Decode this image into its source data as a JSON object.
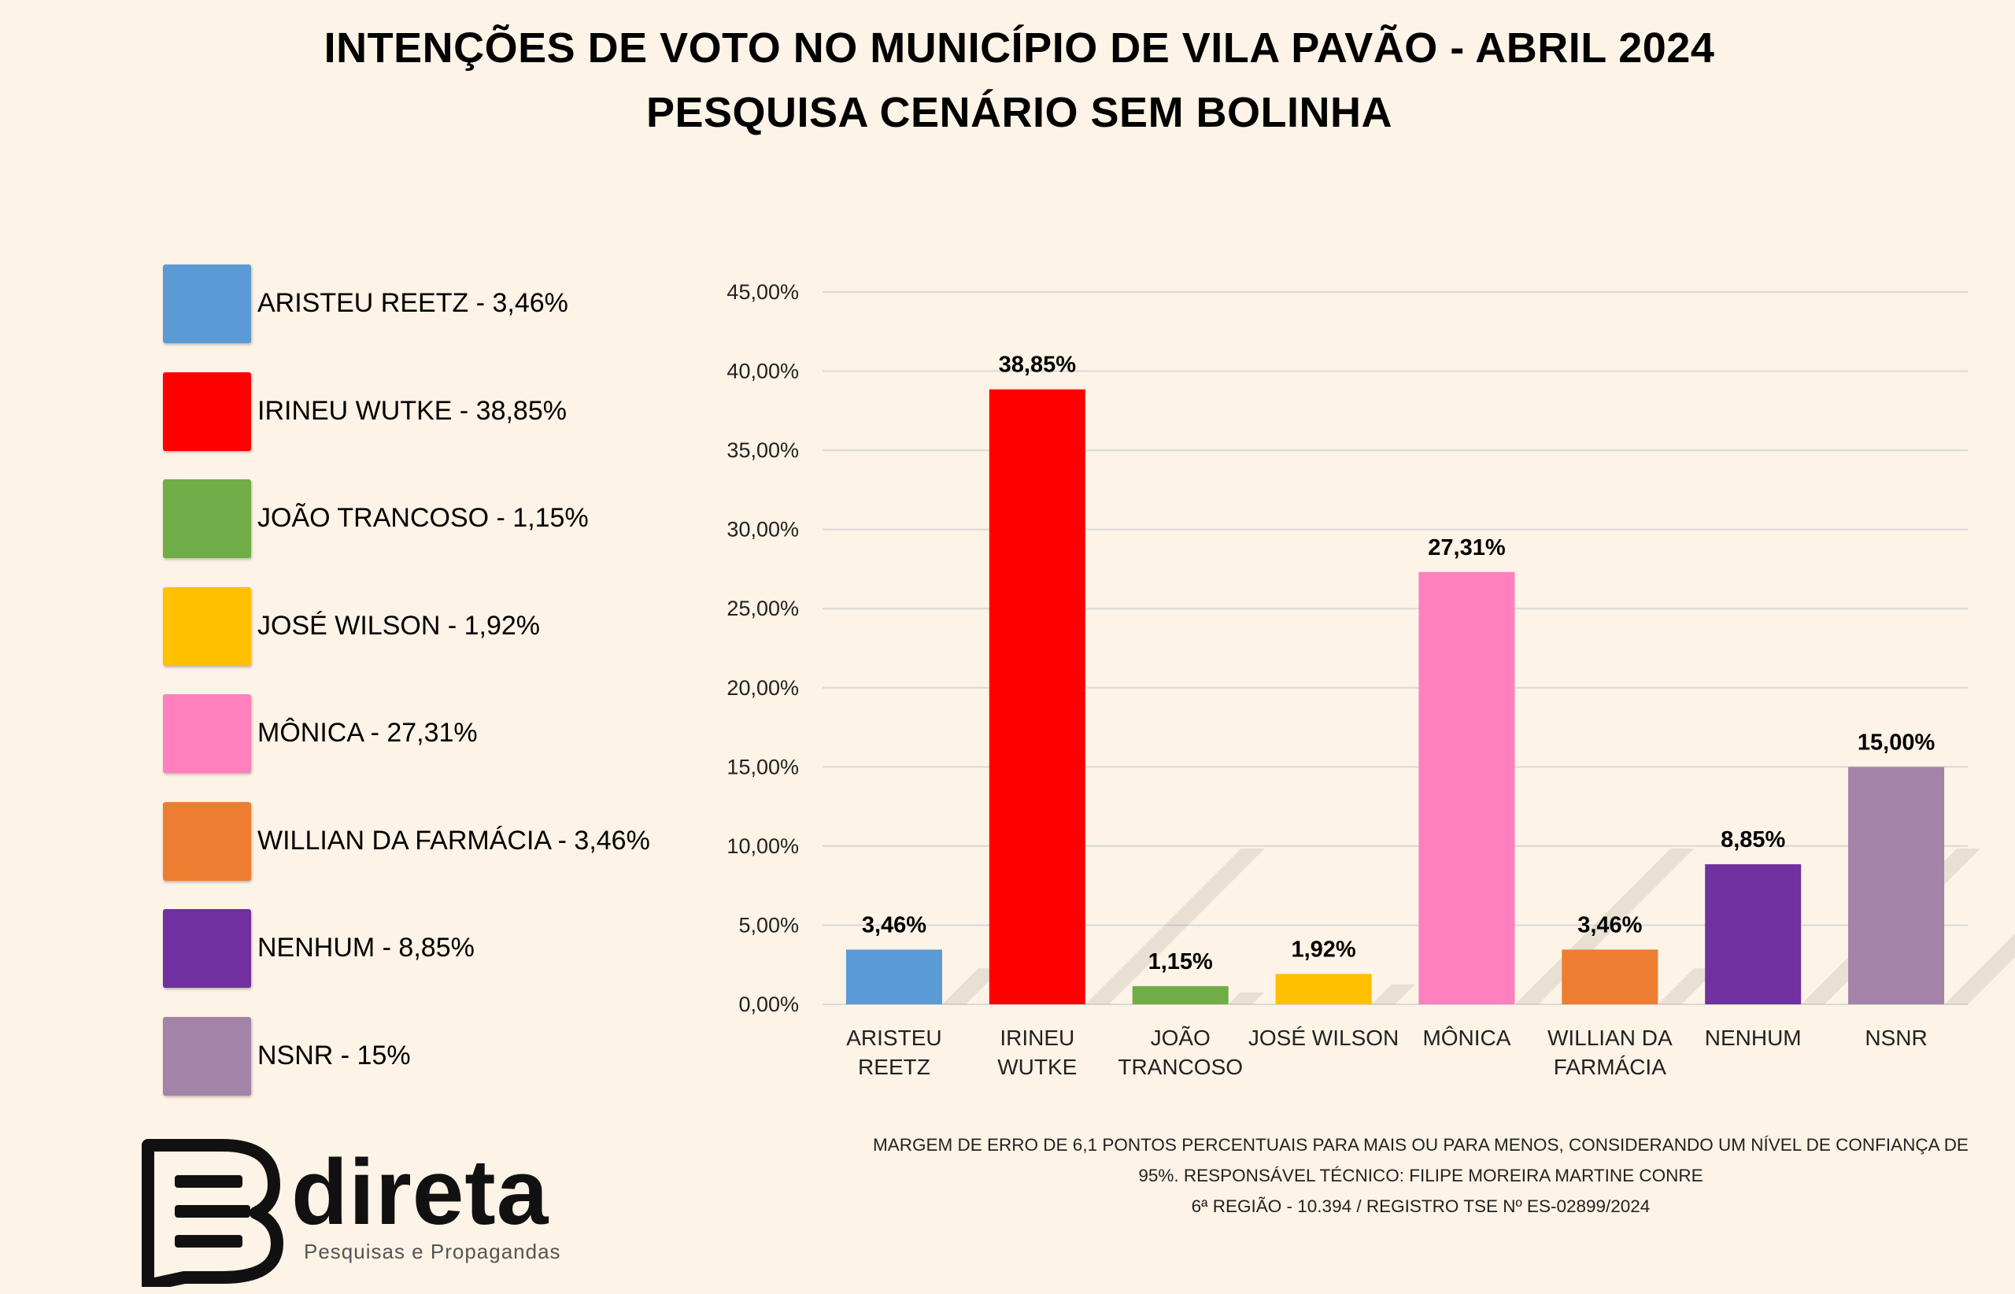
{
  "colors": {
    "background": "#fdf3e6",
    "grid": "#d9d9d9"
  },
  "chart_data": {
    "type": "bar",
    "title": "INTENÇÕES DE VOTO NO MUNICÍPIO DE VILA PAVÃO - ABRIL 2024",
    "subtitle": "PESQUISA CENÁRIO SEM BOLINHA",
    "categories": [
      {
        "label": "ARISTEU REETZ",
        "lines": [
          "ARISTEU",
          "REETZ"
        ],
        "value": 3.46,
        "value_label": "3,46%",
        "color": "#5b9bd5",
        "legend": "ARISTEU REETZ - 3,46%"
      },
      {
        "label": "IRINEU WUTKE",
        "lines": [
          "IRINEU",
          "WUTKE"
        ],
        "value": 38.85,
        "value_label": "38,85%",
        "color": "#ff0000",
        "legend": "IRINEU WUTKE - 38,85%"
      },
      {
        "label": "JOÃO TRANCOSO",
        "lines": [
          "JOÃO",
          "TRANCOSO"
        ],
        "value": 1.15,
        "value_label": "1,15%",
        "color": "#70ad47",
        "legend": "JOÃO TRANCOSO - 1,15%"
      },
      {
        "label": "JOSÉ WILSON",
        "lines": [
          "JOSÉ WILSON"
        ],
        "value": 1.92,
        "value_label": "1,92%",
        "color": "#ffc000",
        "legend": "JOSÉ WILSON - 1,92%"
      },
      {
        "label": "MÔNICA",
        "lines": [
          "MÔNICA"
        ],
        "value": 27.31,
        "value_label": "27,31%",
        "color": "#ff7fbf",
        "legend": "MÔNICA - 27,31%"
      },
      {
        "label": "WILLIAN DA FARMÁCIA",
        "lines": [
          "WILLIAN DA",
          "FARMÁCIA"
        ],
        "value": 3.46,
        "value_label": "3,46%",
        "color": "#ed7d31",
        "legend": "WILLIAN DA FARMÁCIA - 3,46%"
      },
      {
        "label": "NENHUM",
        "lines": [
          "NENHUM"
        ],
        "value": 8.85,
        "value_label": "8,85%",
        "color": "#7030a0",
        "legend": "NENHUM - 8,85%"
      },
      {
        "label": "NSNR",
        "lines": [
          "NSNR"
        ],
        "value": 15.0,
        "value_label": "15,00%",
        "color": "#a383a8",
        "legend": "NSNR - 15%"
      }
    ],
    "ylim": [
      0,
      45
    ],
    "yticks": [
      {
        "value": 0,
        "label": "0,00%"
      },
      {
        "value": 5,
        "label": "5,00%"
      },
      {
        "value": 10,
        "label": "10,00%"
      },
      {
        "value": 15,
        "label": "15,00%"
      },
      {
        "value": 20,
        "label": "20,00%"
      },
      {
        "value": 25,
        "label": "25,00%"
      },
      {
        "value": 30,
        "label": "30,00%"
      },
      {
        "value": 35,
        "label": "35,00%"
      },
      {
        "value": 40,
        "label": "40,00%"
      },
      {
        "value": 45,
        "label": "45,00%"
      }
    ],
    "grid": true,
    "legend_position": "left"
  },
  "footnote": [
    "MARGEM DE ERRO DE 6,1 PONTOS PERCENTUAIS PARA MAIS OU PARA MENOS, CONSIDERANDO UM NÍVEL DE CONFIANÇA DE",
    "95%. RESPONSÁVEL TÉCNICO: FILIPE MOREIRA MARTINE CONRE",
    "6ª REGIÃO - 10.394 / REGISTRO TSE Nº ES-02899/2024"
  ],
  "logo": {
    "name": "direta",
    "tagline": "Pesquisas e Propagandas"
  }
}
